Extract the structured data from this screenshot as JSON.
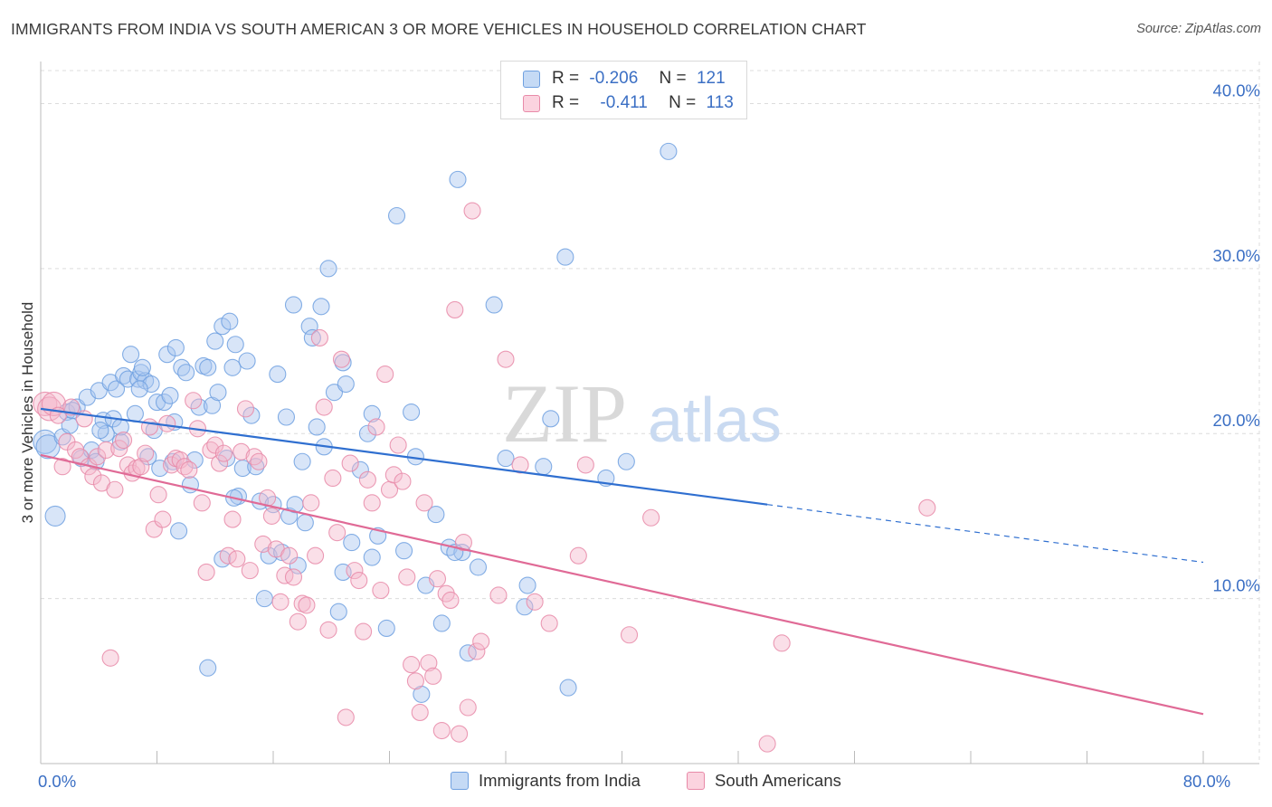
{
  "title": "IMMIGRANTS FROM INDIA VS SOUTH AMERICAN 3 OR MORE VEHICLES IN HOUSEHOLD CORRELATION CHART",
  "source": "Source: ZipAtlas.com",
  "watermark": {
    "zip": "ZIP",
    "atlas": "atlas"
  },
  "legend_top": {
    "rows": [
      {
        "r_label": "R =",
        "r_value": "-0.206",
        "n_label": "N =",
        "n_value": "121",
        "color": "#a9c6ef"
      },
      {
        "r_label": "R =",
        "r_value": "-0.411",
        "n_label": "N =",
        "n_value": "113",
        "color": "#f5b8cb"
      }
    ]
  },
  "legend_bottom": {
    "items": [
      {
        "label": "Immigrants from India",
        "color": "#a9c6ef"
      },
      {
        "label": "South Americans",
        "color": "#f5b8cb"
      }
    ]
  },
  "chart_data": {
    "type": "scatter",
    "ylabel": "3 or more Vehicles in Household",
    "xlim": [
      0,
      80
    ],
    "ylim": [
      0,
      42
    ],
    "x_tick_labels": [
      {
        "value": 0,
        "label": "0.0%"
      },
      {
        "value": 80,
        "label": "80.0%"
      }
    ],
    "y_tick_labels": [
      {
        "value": 10,
        "label": "10.0%"
      },
      {
        "value": 20,
        "label": "20.0%"
      },
      {
        "value": 30,
        "label": "30.0%"
      },
      {
        "value": 40,
        "label": "40.0%"
      }
    ],
    "grid": true,
    "legend_placement": "top-center",
    "series": [
      {
        "name": "Immigrants from India",
        "color": "#6fa0e0",
        "fill": "#a9c6ef",
        "trend": {
          "x0": 0,
          "y0": 21.5,
          "x1": 50,
          "y1": 15.7,
          "dash_x1": 80,
          "dash_y1": 12.2,
          "color": "#2f6fd0"
        },
        "points": [
          [
            0.3,
            19.5
          ],
          [
            0.5,
            19.2
          ],
          [
            1,
            15
          ],
          [
            1.5,
            19.8
          ],
          [
            1.8,
            21.3
          ],
          [
            2,
            20.5
          ],
          [
            2.5,
            21.6
          ],
          [
            2.8,
            18.5
          ],
          [
            3.2,
            22.2
          ],
          [
            3.5,
            19.0
          ],
          [
            3.8,
            18.3
          ],
          [
            4,
            22.6
          ],
          [
            4.3,
            20.8
          ],
          [
            4.5,
            20.0
          ],
          [
            4.8,
            23.1
          ],
          [
            5,
            20.9
          ],
          [
            5.2,
            22.7
          ],
          [
            5.5,
            19.5
          ],
          [
            5.7,
            23.5
          ],
          [
            6,
            23.3
          ],
          [
            6.2,
            24.8
          ],
          [
            6.5,
            21.2
          ],
          [
            6.7,
            23.3
          ],
          [
            6.9,
            23.7
          ],
          [
            7.2,
            23.2
          ],
          [
            7.4,
            18.6
          ],
          [
            7.6,
            23.0
          ],
          [
            7.8,
            20.2
          ],
          [
            8,
            21.9
          ],
          [
            8.2,
            17.9
          ],
          [
            8.5,
            21.9
          ],
          [
            8.7,
            24.8
          ],
          [
            8.9,
            22.3
          ],
          [
            9.1,
            18.3
          ],
          [
            9.3,
            25.2
          ],
          [
            9.5,
            14.1
          ],
          [
            9.7,
            24.0
          ],
          [
            10,
            23.7
          ],
          [
            10.3,
            16.9
          ],
          [
            10.6,
            18.4
          ],
          [
            10.9,
            21.6
          ],
          [
            11.2,
            24.1
          ],
          [
            11.5,
            24.0
          ],
          [
            11.8,
            21.7
          ],
          [
            12,
            25.6
          ],
          [
            12.2,
            22.5
          ],
          [
            12.5,
            26.5
          ],
          [
            12.8,
            18.5
          ],
          [
            13,
            26.8
          ],
          [
            13.2,
            24.0
          ],
          [
            13.4,
            25.4
          ],
          [
            13.6,
            16.2
          ],
          [
            13.9,
            17.9
          ],
          [
            14.2,
            24.4
          ],
          [
            14.5,
            21.1
          ],
          [
            14.8,
            18.0
          ],
          [
            15.1,
            15.9
          ],
          [
            15.4,
            10.0
          ],
          [
            15.7,
            12.6
          ],
          [
            16,
            15.7
          ],
          [
            16.3,
            23.6
          ],
          [
            16.6,
            12.8
          ],
          [
            16.9,
            21.0
          ],
          [
            17.1,
            15.0
          ],
          [
            17.4,
            27.8
          ],
          [
            17.7,
            12.0
          ],
          [
            18,
            18.3
          ],
          [
            18.2,
            14.6
          ],
          [
            18.5,
            26.5
          ],
          [
            18.7,
            25.8
          ],
          [
            19,
            20.4
          ],
          [
            19.3,
            27.7
          ],
          [
            19.5,
            19.2
          ],
          [
            19.8,
            30.0
          ],
          [
            20.2,
            22.5
          ],
          [
            20.5,
            9.2
          ],
          [
            20.8,
            24.3
          ],
          [
            21,
            23.0
          ],
          [
            21.4,
            13.4
          ],
          [
            22,
            17.8
          ],
          [
            22.5,
            20.0
          ],
          [
            22.8,
            21.2
          ],
          [
            23.2,
            13.8
          ],
          [
            23.8,
            8.2
          ],
          [
            24.5,
            33.2
          ],
          [
            25,
            12.9
          ],
          [
            25.5,
            21.3
          ],
          [
            25.8,
            18.6
          ],
          [
            26.2,
            4.2
          ],
          [
            26.5,
            10.8
          ],
          [
            27.2,
            15.1
          ],
          [
            27.6,
            8.5
          ],
          [
            28.1,
            13.1
          ],
          [
            28.7,
            35.4
          ],
          [
            29,
            12.8
          ],
          [
            29.4,
            6.7
          ],
          [
            30.1,
            11.9
          ],
          [
            31.2,
            27.8
          ],
          [
            32,
            18.5
          ],
          [
            33.5,
            10.8
          ],
          [
            33.3,
            9.5
          ],
          [
            34.6,
            18.0
          ],
          [
            35.1,
            20.9
          ],
          [
            36.1,
            30.7
          ],
          [
            36.3,
            4.6
          ],
          [
            38.9,
            17.3
          ],
          [
            40.3,
            18.3
          ],
          [
            43.2,
            37.1
          ],
          [
            11.5,
            5.8
          ],
          [
            22.8,
            12.5
          ],
          [
            28.5,
            12.8
          ],
          [
            17.5,
            15.7
          ],
          [
            20.8,
            11.6
          ],
          [
            13.3,
            16.1
          ],
          [
            9.2,
            20.7
          ],
          [
            5.5,
            20.4
          ],
          [
            6.8,
            22.7
          ],
          [
            2.2,
            21.4
          ],
          [
            4.1,
            20.2
          ],
          [
            7.0,
            24.0
          ],
          [
            12.5,
            12.4
          ]
        ]
      },
      {
        "name": "South Americans",
        "color": "#e88aa8",
        "fill": "#f5b8cb",
        "trend": {
          "x0": 0,
          "y0": 18.7,
          "x1": 80,
          "y1": 3.0,
          "color": "#e06a96"
        },
        "points": [
          [
            0.3,
            21.8
          ],
          [
            0.6,
            21.5
          ],
          [
            0.9,
            21.8
          ],
          [
            1.2,
            21.1
          ],
          [
            1.5,
            18.0
          ],
          [
            1.8,
            19.5
          ],
          [
            2.1,
            21.6
          ],
          [
            2.4,
            19.0
          ],
          [
            2.7,
            18.6
          ],
          [
            3.0,
            20.9
          ],
          [
            3.3,
            18.0
          ],
          [
            3.6,
            17.4
          ],
          [
            3.9,
            18.6
          ],
          [
            4.2,
            17.0
          ],
          [
            4.5,
            19.0
          ],
          [
            4.8,
            6.4
          ],
          [
            5.1,
            16.6
          ],
          [
            5.4,
            19.1
          ],
          [
            5.7,
            19.6
          ],
          [
            6.0,
            18.1
          ],
          [
            6.3,
            17.6
          ],
          [
            6.6,
            17.9
          ],
          [
            6.9,
            18.0
          ],
          [
            7.2,
            18.8
          ],
          [
            7.5,
            20.4
          ],
          [
            7.8,
            14.2
          ],
          [
            8.1,
            16.3
          ],
          [
            8.4,
            14.8
          ],
          [
            8.7,
            20.6
          ],
          [
            9.0,
            18.1
          ],
          [
            9.3,
            18.5
          ],
          [
            9.6,
            18.4
          ],
          [
            9.9,
            18.0
          ],
          [
            10.2,
            17.8
          ],
          [
            10.5,
            22.0
          ],
          [
            10.8,
            20.3
          ],
          [
            11.1,
            15.8
          ],
          [
            11.4,
            11.6
          ],
          [
            11.7,
            19.0
          ],
          [
            12.0,
            19.3
          ],
          [
            12.3,
            18.2
          ],
          [
            12.6,
            18.8
          ],
          [
            12.9,
            12.6
          ],
          [
            13.2,
            14.8
          ],
          [
            13.5,
            12.4
          ],
          [
            13.8,
            18.9
          ],
          [
            14.1,
            21.5
          ],
          [
            14.4,
            11.7
          ],
          [
            14.7,
            18.6
          ],
          [
            15.0,
            18.3
          ],
          [
            15.3,
            13.3
          ],
          [
            15.6,
            16.1
          ],
          [
            15.9,
            15.0
          ],
          [
            16.2,
            13.0
          ],
          [
            16.5,
            9.8
          ],
          [
            16.8,
            11.4
          ],
          [
            17.1,
            12.6
          ],
          [
            17.4,
            11.3
          ],
          [
            17.7,
            8.6
          ],
          [
            18.0,
            9.7
          ],
          [
            18.3,
            9.6
          ],
          [
            18.6,
            15.8
          ],
          [
            18.9,
            12.6
          ],
          [
            19.2,
            25.8
          ],
          [
            19.5,
            21.6
          ],
          [
            19.8,
            8.1
          ],
          [
            20.1,
            17.3
          ],
          [
            20.4,
            14.0
          ],
          [
            20.7,
            24.5
          ],
          [
            21.0,
            2.8
          ],
          [
            21.3,
            18.2
          ],
          [
            21.6,
            11.7
          ],
          [
            21.9,
            11.1
          ],
          [
            22.2,
            8.0
          ],
          [
            22.5,
            17.2
          ],
          [
            22.8,
            15.8
          ],
          [
            23.1,
            20.4
          ],
          [
            23.4,
            10.5
          ],
          [
            23.7,
            23.6
          ],
          [
            24.0,
            16.6
          ],
          [
            24.3,
            17.5
          ],
          [
            24.6,
            19.3
          ],
          [
            24.9,
            17.1
          ],
          [
            25.2,
            11.3
          ],
          [
            25.5,
            6.0
          ],
          [
            25.8,
            5.0
          ],
          [
            26.1,
            3.1
          ],
          [
            26.4,
            15.8
          ],
          [
            26.7,
            6.1
          ],
          [
            27.0,
            5.3
          ],
          [
            27.3,
            11.2
          ],
          [
            27.6,
            2.0
          ],
          [
            27.9,
            10.3
          ],
          [
            28.2,
            9.9
          ],
          [
            28.5,
            27.5
          ],
          [
            28.8,
            1.8
          ],
          [
            29.1,
            13.4
          ],
          [
            29.4,
            3.4
          ],
          [
            29.7,
            33.5
          ],
          [
            30.0,
            6.8
          ],
          [
            30.3,
            7.4
          ],
          [
            31.5,
            10.2
          ],
          [
            32.0,
            24.5
          ],
          [
            33.0,
            18.1
          ],
          [
            34.0,
            9.8
          ],
          [
            35.0,
            8.5
          ],
          [
            37.0,
            12.6
          ],
          [
            37.5,
            18.1
          ],
          [
            40.5,
            7.8
          ],
          [
            42.0,
            14.9
          ],
          [
            50.0,
            1.2
          ],
          [
            51.0,
            7.3
          ],
          [
            61.0,
            15.5
          ]
        ]
      }
    ]
  }
}
